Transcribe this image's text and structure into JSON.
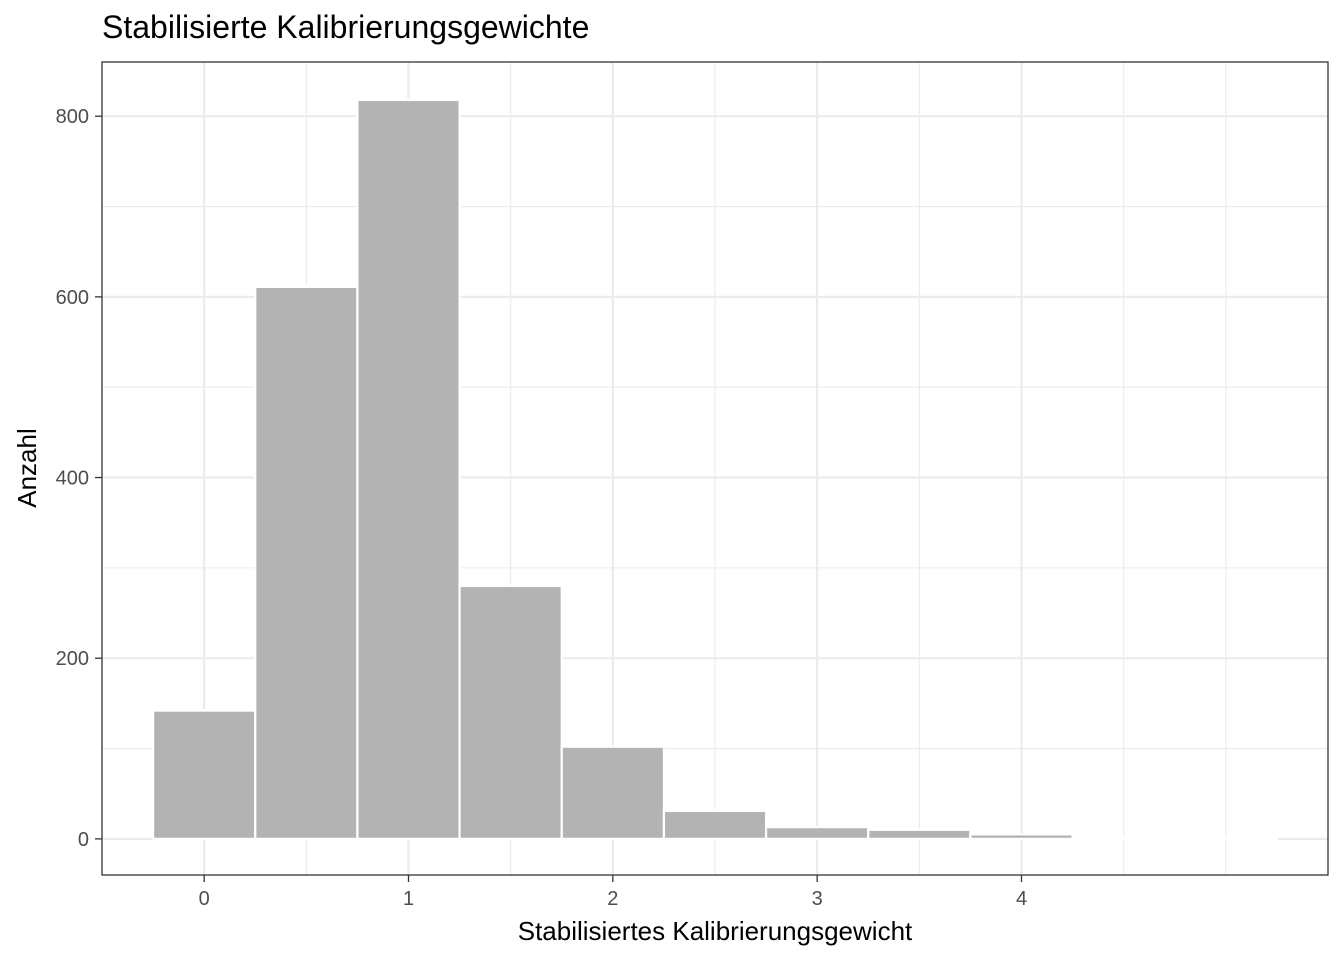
{
  "chart_data": {
    "type": "bar",
    "subtype": "histogram",
    "title": "Stabilisierte Kalibrierungsgewichte",
    "xlabel": "Stabilisiertes Kalibrierungsgewicht",
    "ylabel": "Anzahl",
    "xlim": [
      -0.5,
      5.5
    ],
    "ylim": [
      -40,
      860
    ],
    "x_ticks": [
      0,
      1,
      2,
      3,
      4
    ],
    "y_ticks": [
      0,
      200,
      400,
      600,
      800
    ],
    "bin_width": 0.5,
    "bins": [
      {
        "x_start": -0.25,
        "x_end": 0.25,
        "count": 142
      },
      {
        "x_start": 0.25,
        "x_end": 0.75,
        "count": 611
      },
      {
        "x_start": 0.75,
        "x_end": 1.25,
        "count": 818
      },
      {
        "x_start": 1.25,
        "x_end": 1.75,
        "count": 280
      },
      {
        "x_start": 1.75,
        "x_end": 2.25,
        "count": 102
      },
      {
        "x_start": 2.25,
        "x_end": 2.75,
        "count": 31
      },
      {
        "x_start": 2.75,
        "x_end": 3.25,
        "count": 13
      },
      {
        "x_start": 3.25,
        "x_end": 3.75,
        "count": 10
      },
      {
        "x_start": 3.75,
        "x_end": 4.25,
        "count": 5
      },
      {
        "x_start": 4.25,
        "x_end": 4.75,
        "count": 1
      },
      {
        "x_start": 4.75,
        "x_end": 5.25,
        "count": 1
      }
    ],
    "bar_fill": "#b3b3b3",
    "bar_outline": "#ffffff",
    "grid": true,
    "grid_color": "#ebebeb",
    "legend": "none"
  }
}
